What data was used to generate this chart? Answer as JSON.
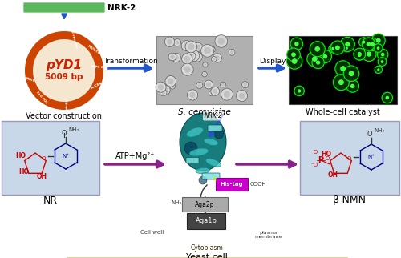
{
  "bg_color": "#ffffff",
  "nrk2_bar_color": "#5cb85c",
  "nrk2_label": "NRK-2",
  "plasmid_label1": "pYD1",
  "plasmid_label2": "5009 bp",
  "plasmid_ring_color": "#cc4400",
  "plasmid_inner_color": "#f5e6d0",
  "plasmid_text_color": "#cc2200",
  "vector_label": "Vector construction",
  "transformation_label": "Transformation",
  "display_label": "Display",
  "sc_label": "S. cerevisiae",
  "wcc_label": "Whole-cell catalyst",
  "nr_label": "NR",
  "atp_label": "ATP+Mg²⁺",
  "bnmn_label": "β-NMN",
  "arrow_blue": "#2255cc",
  "arrow_purple": "#882288",
  "nr_box_color": "#c8d8e8",
  "bnmn_box_color": "#c8d8e8",
  "yeast_cell_label": "Yeast cell",
  "cytoplasm_label": "Cytoplasm",
  "cell_wall_label": "Cell wall",
  "plasma_membrane_label": "plasma\nmembrane",
  "aga1p_label": "Aga1p",
  "aga2p_label": "Aga2p",
  "his_tag_label": "His-tag",
  "cooh_label": "COOH",
  "nh2_label": "NH₂",
  "nrk2_label_protein": "NRK-2",
  "figsize": [
    5.0,
    3.22
  ],
  "dpi": 100
}
